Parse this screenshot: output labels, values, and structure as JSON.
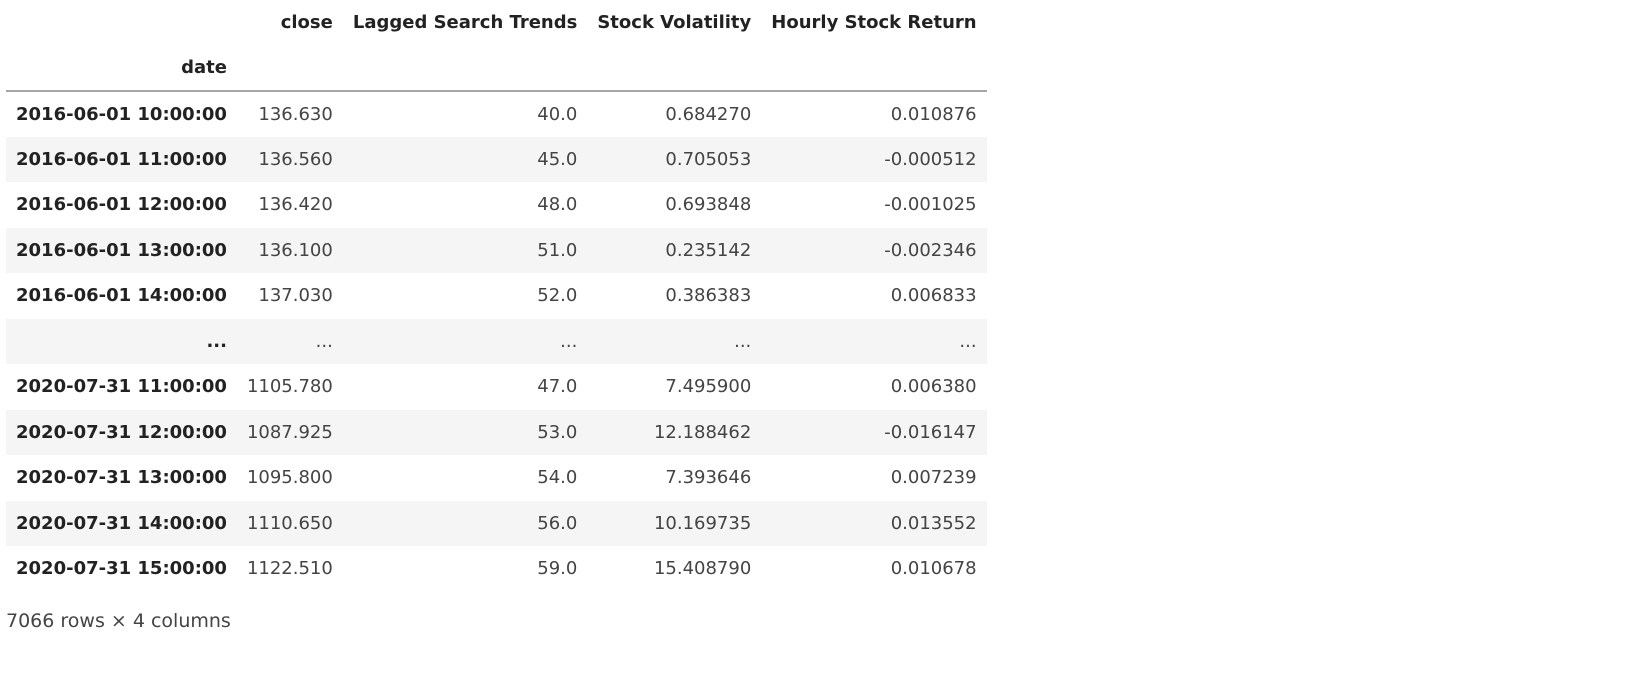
{
  "table": {
    "columns": [
      "close",
      "Lagged Search Trends",
      "Stock Volatility",
      "Hourly Stock Return"
    ],
    "index_name": "date",
    "rows": [
      {
        "index": "2016-06-01 10:00:00",
        "cells": [
          "136.630",
          "40.0",
          "0.684270",
          "0.010876"
        ]
      },
      {
        "index": "2016-06-01 11:00:00",
        "cells": [
          "136.560",
          "45.0",
          "0.705053",
          "-0.000512"
        ]
      },
      {
        "index": "2016-06-01 12:00:00",
        "cells": [
          "136.420",
          "48.0",
          "0.693848",
          "-0.001025"
        ]
      },
      {
        "index": "2016-06-01 13:00:00",
        "cells": [
          "136.100",
          "51.0",
          "0.235142",
          "-0.002346"
        ]
      },
      {
        "index": "2016-06-01 14:00:00",
        "cells": [
          "137.030",
          "52.0",
          "0.386383",
          "0.006833"
        ]
      },
      {
        "index": "...",
        "cells": [
          "...",
          "...",
          "...",
          "..."
        ]
      },
      {
        "index": "2020-07-31 11:00:00",
        "cells": [
          "1105.780",
          "47.0",
          "7.495900",
          "0.006380"
        ]
      },
      {
        "index": "2020-07-31 12:00:00",
        "cells": [
          "1087.925",
          "53.0",
          "12.188462",
          "-0.016147"
        ]
      },
      {
        "index": "2020-07-31 13:00:00",
        "cells": [
          "1095.800",
          "54.0",
          "7.393646",
          "0.007239"
        ]
      },
      {
        "index": "2020-07-31 14:00:00",
        "cells": [
          "1110.650",
          "56.0",
          "10.169735",
          "0.013552"
        ]
      },
      {
        "index": "2020-07-31 15:00:00",
        "cells": [
          "1122.510",
          "59.0",
          "15.408790",
          "0.010678"
        ]
      }
    ]
  },
  "footer": {
    "shape_text": "7066 rows × 4 columns"
  }
}
